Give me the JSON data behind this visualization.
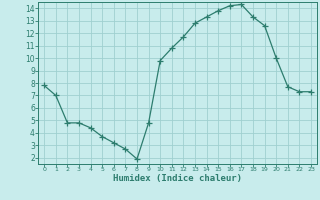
{
  "x": [
    0,
    1,
    2,
    3,
    4,
    5,
    6,
    7,
    8,
    9,
    10,
    11,
    12,
    13,
    14,
    15,
    16,
    17,
    18,
    19,
    20,
    21,
    22,
    23
  ],
  "y": [
    7.8,
    7.0,
    4.8,
    4.8,
    4.4,
    3.7,
    3.2,
    2.7,
    1.9,
    4.8,
    9.8,
    10.8,
    11.7,
    12.8,
    13.3,
    13.8,
    14.2,
    14.3,
    13.3,
    12.6,
    10.0,
    7.7,
    7.3,
    7.3
  ],
  "xlim": [
    -0.5,
    23.5
  ],
  "ylim": [
    1.5,
    14.5
  ],
  "yticks": [
    2,
    3,
    4,
    5,
    6,
    7,
    8,
    9,
    10,
    11,
    12,
    13,
    14
  ],
  "xticks": [
    0,
    1,
    2,
    3,
    4,
    5,
    6,
    7,
    8,
    9,
    10,
    11,
    12,
    13,
    14,
    15,
    16,
    17,
    18,
    19,
    20,
    21,
    22,
    23
  ],
  "xlabel": "Humidex (Indice chaleur)",
  "line_color": "#2d7d6e",
  "marker_color": "#2d7d6e",
  "bg_color": "#c8ecec",
  "grid_color": "#a0d0d0"
}
